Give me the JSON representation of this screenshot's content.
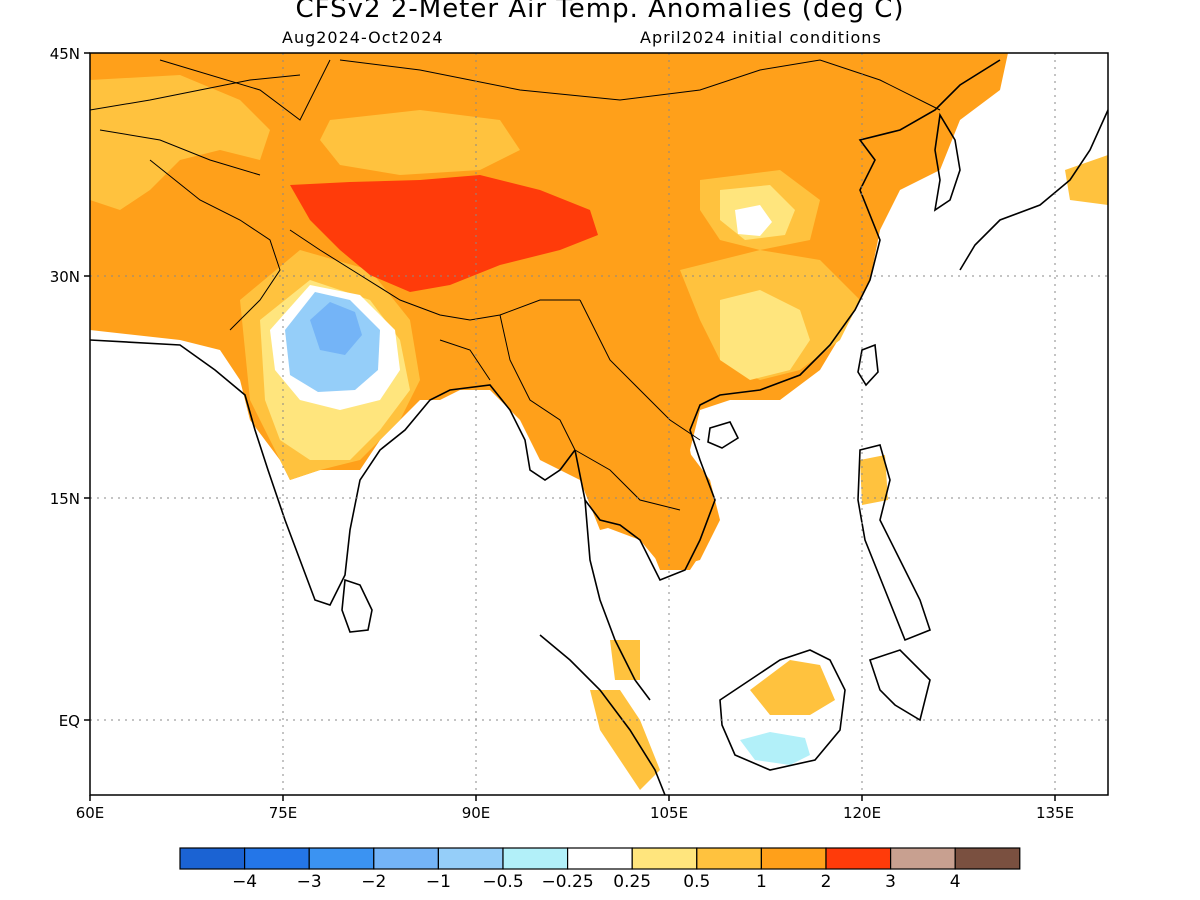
{
  "title": "CFSv2 2-Meter Air Temp. Anomalies (deg C)",
  "subtitle_left": "Aug2024-Oct2024",
  "subtitle_right": "April2024 initial conditions",
  "lat_labels": [
    "45N",
    "30N",
    "15N",
    "EQ"
  ],
  "lon_labels": [
    "60E",
    "75E",
    "90E",
    "105E",
    "120E",
    "135E"
  ],
  "colorbar": {
    "colors": [
      "#1b63d3",
      "#2476e8",
      "#3b93f2",
      "#74b4f7",
      "#95cef9",
      "#b2f0f9",
      "#ffffff",
      "#ffe57d",
      "#ffc23e",
      "#ffa01a",
      "#ff3b0a",
      "#c8a090",
      "#7a5040"
    ],
    "labels": [
      "-4",
      "-3",
      "-2",
      "-1",
      "-0.5",
      "-0.25",
      "0.25",
      "0.5",
      "1",
      "2",
      "3",
      "4"
    ]
  },
  "palette": {
    "anom_0_5_1": "#ffc23e",
    "anom_1_2": "#ffa01a",
    "anom_2_3": "#ff3b0a",
    "anom_0_25_0_5": "#ffe57d",
    "anom_neg_0_5": "#95cef9",
    "anom_neg_0_25": "#b2f0f9",
    "anom_neg_1": "#74b4f7"
  }
}
